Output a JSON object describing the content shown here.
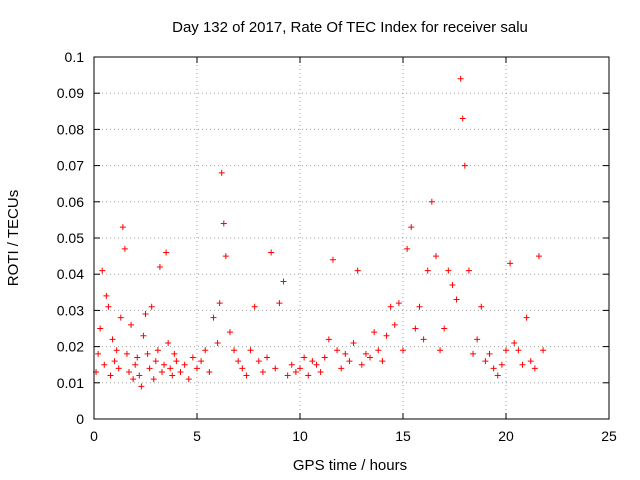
{
  "chart_data": {
    "type": "scatter",
    "title": "Day 132 of 2017, Rate Of TEC Index for receiver salu",
    "xlabel": "GPS time / hours",
    "ylabel": "ROTI / TECUs",
    "xlim": [
      0,
      25
    ],
    "ylim": [
      0,
      0.1
    ],
    "x_ticks": [
      0,
      5,
      10,
      15,
      20,
      25
    ],
    "x_tick_labels": [
      "0",
      "5",
      "10",
      "15",
      "20",
      "25"
    ],
    "y_ticks": [
      0,
      0.01,
      0.02,
      0.03,
      0.04,
      0.05,
      0.06,
      0.07,
      0.08,
      0.09,
      0.1
    ],
    "y_tick_labels": [
      "0",
      "0.01",
      "0.02",
      "0.03",
      "0.04",
      "0.05",
      "0.06",
      "0.07",
      "0.08",
      "0.09",
      "0.1"
    ],
    "grid": true,
    "marker": "plus",
    "color": "#ff0000",
    "series": [
      {
        "x": [
          0.1,
          0.2,
          0.3,
          0.4,
          0.5,
          0.6,
          0.7,
          0.8,
          0.9,
          1.0,
          1.1,
          1.2,
          1.3,
          1.4,
          1.5,
          1.6,
          1.7,
          1.8,
          1.9,
          2.0,
          2.1,
          2.2,
          2.3,
          2.4,
          2.5,
          2.6,
          2.7,
          2.8,
          2.9,
          3.0,
          3.1,
          3.2,
          3.3,
          3.4,
          3.5,
          3.6,
          3.7,
          3.8,
          3.9,
          4.0,
          4.2,
          4.4,
          4.6,
          4.8,
          5.0,
          5.2,
          5.4,
          5.6,
          5.8,
          6.0,
          6.1,
          6.2,
          6.3,
          6.4,
          6.6,
          6.8,
          7.0,
          7.2,
          7.4,
          7.6,
          7.8,
          8.0,
          8.2,
          8.4,
          8.6,
          8.8,
          9.0,
          9.2,
          9.4,
          9.6,
          9.8,
          10.0,
          10.2,
          10.4,
          10.6,
          10.8,
          11.0,
          11.2,
          11.4,
          11.6,
          11.8,
          12.0,
          12.2,
          12.4,
          12.6,
          12.8,
          13.0,
          13.2,
          13.4,
          13.6,
          13.8,
          14.0,
          14.2,
          14.4,
          14.6,
          14.8,
          15.0,
          15.2,
          15.4,
          15.6,
          15.8,
          16.0,
          16.2,
          16.4,
          16.6,
          16.8,
          17.0,
          17.2,
          17.4,
          17.6,
          17.8,
          17.9,
          18.0,
          18.2,
          18.4,
          18.6,
          18.8,
          19.0,
          19.2,
          19.4,
          19.6,
          19.8,
          20.0,
          20.2,
          20.4,
          20.6,
          20.8,
          21.0,
          21.2,
          21.4,
          21.6,
          21.8
        ],
        "y": [
          0.013,
          0.018,
          0.025,
          0.041,
          0.015,
          0.034,
          0.031,
          0.012,
          0.022,
          0.016,
          0.019,
          0.014,
          0.028,
          0.053,
          0.047,
          0.018,
          0.013,
          0.026,
          0.011,
          0.015,
          0.017,
          0.012,
          0.009,
          0.023,
          0.029,
          0.018,
          0.014,
          0.031,
          0.011,
          0.016,
          0.019,
          0.042,
          0.013,
          0.015,
          0.046,
          0.021,
          0.014,
          0.012,
          0.018,
          0.016,
          0.013,
          0.015,
          0.011,
          0.017,
          0.014,
          0.016,
          0.019,
          0.013,
          0.028,
          0.021,
          0.032,
          0.068,
          0.054,
          0.045,
          0.024,
          0.019,
          0.016,
          0.014,
          0.012,
          0.019,
          0.031,
          0.016,
          0.013,
          0.017,
          0.046,
          0.014,
          0.032,
          0.038,
          0.012,
          0.015,
          0.013,
          0.014,
          0.017,
          0.012,
          0.016,
          0.015,
          0.013,
          0.017,
          0.022,
          0.044,
          0.019,
          0.014,
          0.018,
          0.016,
          0.021,
          0.041,
          0.015,
          0.018,
          0.017,
          0.024,
          0.019,
          0.016,
          0.023,
          0.031,
          0.026,
          0.032,
          0.019,
          0.047,
          0.053,
          0.025,
          0.031,
          0.022,
          0.041,
          0.06,
          0.045,
          0.019,
          0.025,
          0.041,
          0.037,
          0.033,
          0.094,
          0.083,
          0.07,
          0.041,
          0.018,
          0.022,
          0.031,
          0.016,
          0.018,
          0.014,
          0.012,
          0.015,
          0.019,
          0.043,
          0.021,
          0.019,
          0.015,
          0.028,
          0.016,
          0.014,
          0.045,
          0.019
        ]
      }
    ]
  }
}
